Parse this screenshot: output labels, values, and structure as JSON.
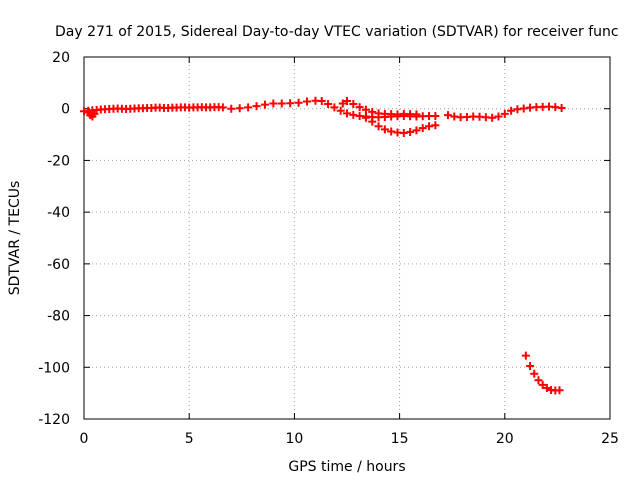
{
  "chart_data": {
    "type": "scatter",
    "title": "Day 271 of 2015, Sidereal Day-to-day VTEC variation (SDTVAR) for receiver func",
    "xlabel": "GPS time / hours",
    "ylabel": "SDTVAR / TECUs",
    "xlim": [
      0,
      25
    ],
    "ylim": [
      -120,
      20
    ],
    "xticks": [
      0,
      5,
      10,
      15,
      20,
      25
    ],
    "yticks": [
      20,
      0,
      -20,
      -40,
      -60,
      -80,
      -100,
      -120
    ],
    "grid": true,
    "marker": "plus",
    "colors": {
      "series": "#ff0000",
      "grid": "#a0a0a0",
      "axis": "#000000"
    },
    "series": [
      {
        "name": "main",
        "x": [
          0.0,
          0.2,
          0.4,
          0.6,
          0.8,
          1.0,
          1.2,
          1.4,
          1.6,
          1.8,
          2.0,
          2.2,
          2.4,
          2.6,
          2.8,
          3.0,
          3.2,
          3.4,
          3.6,
          3.8,
          4.0,
          4.2,
          4.4,
          4.6,
          4.8,
          5.0,
          5.2,
          5.4,
          5.6,
          5.8,
          6.0,
          6.2,
          6.4,
          6.6
        ],
        "y": [
          -1.0,
          -0.8,
          -0.6,
          -0.5,
          -0.3,
          -0.2,
          -0.1,
          0.0,
          0.1,
          0.0,
          -0.1,
          0.0,
          0.1,
          0.2,
          0.2,
          0.3,
          0.3,
          0.4,
          0.4,
          0.3,
          0.3,
          0.4,
          0.4,
          0.5,
          0.5,
          0.4,
          0.5,
          0.5,
          0.6,
          0.5,
          0.5,
          0.6,
          0.6,
          0.5
        ]
      },
      {
        "name": "main-dip",
        "x": [
          0.2,
          0.3,
          0.4,
          0.5
        ],
        "y": [
          -1.5,
          -2.5,
          -3.0,
          -2.0
        ]
      },
      {
        "name": "segment-2",
        "x": [
          7.0,
          7.4,
          7.8,
          8.2,
          8.6,
          9.0,
          9.4,
          9.8,
          10.2,
          10.6,
          11.0,
          11.3,
          11.6,
          11.9,
          12.2,
          12.5,
          12.8,
          13.1,
          13.4,
          13.7,
          14.0,
          14.3,
          14.6,
          14.9,
          15.2,
          15.5,
          15.8,
          16.1,
          16.4,
          16.7
        ],
        "y": [
          0.0,
          0.2,
          0.5,
          1.0,
          1.6,
          2.0,
          2.0,
          2.1,
          2.3,
          2.8,
          3.1,
          3.0,
          1.8,
          0.5,
          -0.8,
          -1.8,
          -2.4,
          -2.8,
          -3.0,
          -3.2,
          -3.3,
          -3.2,
          -3.0,
          -2.9,
          -2.8,
          -2.9,
          -3.0,
          -2.9,
          -2.8,
          -2.8
        ]
      },
      {
        "name": "segment-2-upper",
        "x": [
          12.3,
          12.5,
          12.8,
          13.1,
          13.4,
          13.7,
          14.0,
          14.3,
          14.6,
          14.9,
          15.2,
          15.5,
          15.8
        ],
        "y": [
          2.0,
          3.0,
          1.8,
          0.6,
          -0.4,
          -1.2,
          -1.8,
          -2.0,
          -2.1,
          -2.2,
          -2.0,
          -2.1,
          -2.2
        ]
      },
      {
        "name": "segment-2-lower",
        "x": [
          13.4,
          13.7,
          14.0,
          14.3,
          14.6,
          14.9,
          15.2,
          15.5,
          15.8,
          16.1,
          16.4,
          16.7
        ],
        "y": [
          -3.5,
          -5.0,
          -6.8,
          -8.0,
          -8.8,
          -9.2,
          -9.4,
          -9.0,
          -8.4,
          -7.5,
          -6.8,
          -6.4
        ]
      },
      {
        "name": "segment-3",
        "x": [
          17.3,
          17.6,
          17.9,
          18.2,
          18.5,
          18.8,
          19.1,
          19.4,
          19.7,
          20.0,
          20.3,
          20.6,
          20.9,
          21.2,
          21.5,
          21.8,
          22.1,
          22.4,
          22.7
        ],
        "y": [
          -2.5,
          -3.0,
          -3.3,
          -3.2,
          -3.0,
          -3.1,
          -3.3,
          -3.5,
          -3.0,
          -2.0,
          -0.8,
          -0.2,
          0.1,
          0.4,
          0.6,
          0.7,
          0.8,
          0.6,
          0.3
        ]
      },
      {
        "name": "late-drop",
        "x": [
          21.0,
          21.2,
          21.4,
          21.6,
          21.8,
          22.0,
          22.2,
          22.4,
          22.6
        ],
        "y": [
          -95.5,
          -99.5,
          -102.5,
          -105.0,
          -106.8,
          -108.0,
          -108.8,
          -109.0,
          -108.9
        ]
      }
    ]
  }
}
